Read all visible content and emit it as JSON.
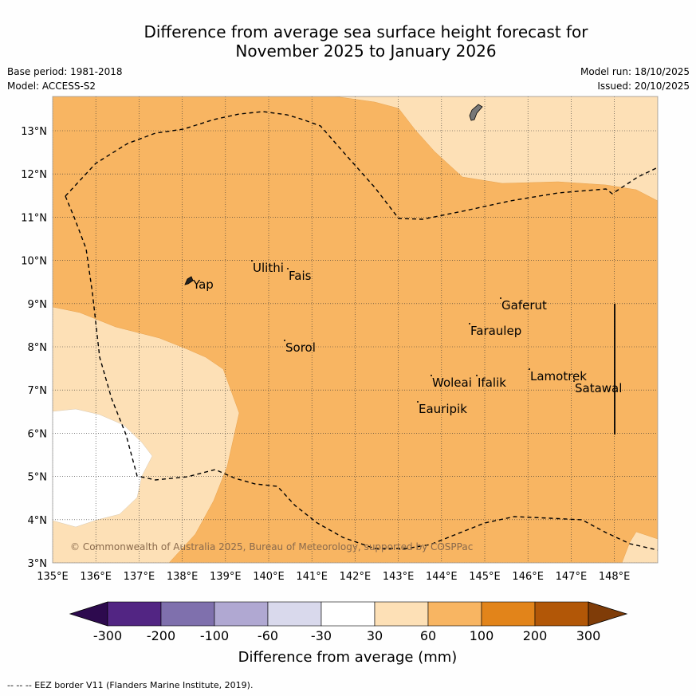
{
  "header": {
    "title_line1": "Difference from average sea surface height forecast for",
    "title_line2": "November 2025 to January 2026",
    "base_period": "Base period: 1981-2018",
    "model": "Model: ACCESS-S2",
    "model_run": "Model run: 18/10/2025",
    "issued": "Issued: 20/10/2025"
  },
  "map": {
    "lon_labels": [
      "135°E",
      "136°E",
      "137°E",
      "138°E",
      "139°E",
      "140°E",
      "141°E",
      "142°E",
      "143°E",
      "144°E",
      "145°E",
      "146°E",
      "147°E",
      "148°E"
    ],
    "lat_labels": [
      "13°N",
      "12°N",
      "11°N",
      "10°N",
      "9°N",
      "8°N",
      "7°N",
      "6°N",
      "5°N",
      "4°N",
      "3°N"
    ],
    "places": [
      "Yap",
      "Ulithi",
      "Fais",
      "Gaferut",
      "Faraulep",
      "Sorol",
      "Woleai",
      "Ifalik",
      "Lamotrek",
      "Satawal",
      "Eauripik"
    ],
    "copyright": "© Commonwealth of Australia 2025, Bureau of Meteorology, supported by COSPPac"
  },
  "legend": {
    "tick_labels": [
      "-300",
      "-200",
      "-100",
      "-60",
      "-30",
      "30",
      "60",
      "100",
      "200",
      "300"
    ],
    "colors": [
      "#2d0a4e",
      "#522583",
      "#7f70ad",
      "#b0a8d2",
      "#d9d9ec",
      "#ffffff",
      "#fde0b6",
      "#f8b562",
      "#e2841a",
      "#b25707",
      "#7f3c08"
    ],
    "axis_label": "Difference from average (mm)"
  },
  "footnote": "--  --  -- EEZ border V11 (Flanders Marine Institute, 2019)."
}
